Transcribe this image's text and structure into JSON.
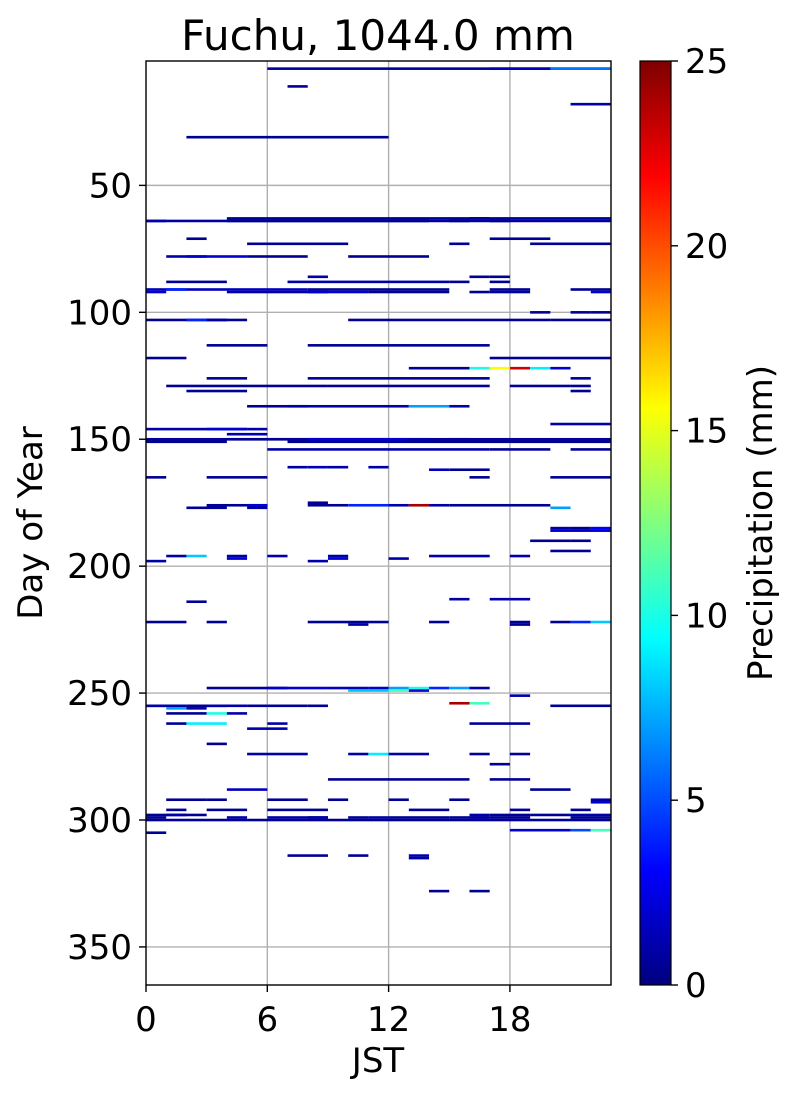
{
  "chart_data": {
    "type": "heatmap",
    "title": "Fuchu, 1044.0 mm",
    "xlabel": "JST",
    "ylabel": "Day of Year",
    "xlim": [
      0,
      23
    ],
    "ylim": [
      365,
      1
    ],
    "y_inverted": true,
    "xticks": [
      0,
      6,
      12,
      18
    ],
    "yticks": [
      50,
      100,
      150,
      200,
      250,
      300,
      350
    ],
    "grid": true,
    "colormap": "jet",
    "colorbar": {
      "label": "Precipitation (mm)",
      "range": [
        0,
        25
      ],
      "ticks": [
        0,
        5,
        10,
        15,
        20,
        25
      ],
      "gradient_stops": [
        "#00007f",
        "#0000ff",
        "#007fff",
        "#00ffff",
        "#7fff7f",
        "#ffff00",
        "#ff7f00",
        "#ff0000",
        "#7f0000"
      ]
    },
    "cell_encoding": "each row is [day_of_year, hour_start, hour_end, precipitation_mm]",
    "cells": [
      [
        4,
        6,
        23,
        0.5
      ],
      [
        4,
        17,
        20,
        1.5
      ],
      [
        4,
        20,
        23,
        6
      ],
      [
        11,
        7,
        8,
        0.5
      ],
      [
        18,
        21,
        23,
        1
      ],
      [
        31,
        2,
        12,
        0.5
      ],
      [
        63,
        4,
        23,
        0.5
      ],
      [
        63,
        16,
        17,
        0.5
      ],
      [
        64,
        0,
        23,
        1
      ],
      [
        64,
        0,
        1,
        1
      ],
      [
        64,
        4,
        10,
        0.5
      ],
      [
        64,
        10,
        14,
        0.5
      ],
      [
        64,
        15,
        16,
        0.5
      ],
      [
        64,
        17,
        18,
        0.5
      ],
      [
        71,
        2,
        3,
        0.5
      ],
      [
        71,
        17,
        20,
        0.5
      ],
      [
        73,
        5,
        10,
        0.5
      ],
      [
        73,
        15,
        16,
        0.5
      ],
      [
        73,
        19,
        23,
        0.5
      ],
      [
        78,
        1,
        3,
        1
      ],
      [
        78,
        2,
        5,
        2
      ],
      [
        78,
        5,
        7,
        0.5
      ],
      [
        78,
        7,
        8,
        0.5
      ],
      [
        78,
        10,
        14,
        0.5
      ],
      [
        86,
        8,
        9,
        1
      ],
      [
        86,
        16,
        17,
        0.5
      ],
      [
        86,
        17,
        18,
        0.5
      ],
      [
        88,
        1,
        4,
        0.5
      ],
      [
        88,
        7,
        15,
        1
      ],
      [
        88,
        15,
        16,
        0.5
      ],
      [
        88,
        17,
        18,
        0.5
      ],
      [
        91,
        0,
        8,
        1.5
      ],
      [
        91,
        1,
        2,
        4
      ],
      [
        91,
        8,
        15,
        0.5
      ],
      [
        91,
        17,
        19,
        0.5
      ],
      [
        91,
        21,
        23,
        0.5
      ],
      [
        92,
        0,
        1,
        2
      ],
      [
        92,
        4,
        9,
        1
      ],
      [
        92,
        8,
        11,
        2
      ],
      [
        92,
        11,
        15,
        0.5
      ],
      [
        92,
        16,
        17,
        0.5
      ],
      [
        92,
        17,
        19,
        1
      ],
      [
        92,
        22,
        23,
        2
      ],
      [
        100,
        19,
        20,
        0.5
      ],
      [
        100,
        21,
        22,
        0.5
      ],
      [
        100,
        22,
        23,
        0.5
      ],
      [
        103,
        0,
        4,
        0.5
      ],
      [
        103,
        2,
        4,
        4
      ],
      [
        103,
        3,
        5,
        0.5
      ],
      [
        103,
        10,
        16,
        0.5
      ],
      [
        103,
        16,
        20,
        0.5
      ],
      [
        103,
        20,
        23,
        0.5
      ],
      [
        113,
        3,
        6,
        0.5
      ],
      [
        113,
        8,
        17,
        0.5
      ],
      [
        118,
        0,
        2,
        0.5
      ],
      [
        118,
        17,
        23,
        0.5
      ],
      [
        122,
        13,
        16,
        0.5
      ],
      [
        122,
        16,
        17,
        10
      ],
      [
        122,
        17,
        18,
        15.5
      ],
      [
        122,
        18,
        19,
        23
      ],
      [
        122,
        19,
        20,
        9
      ],
      [
        122,
        20,
        21,
        2
      ],
      [
        126,
        3,
        5,
        0.5
      ],
      [
        126,
        8,
        17,
        0.5
      ],
      [
        126,
        21,
        22,
        0.5
      ],
      [
        129,
        1,
        9,
        0.5
      ],
      [
        129,
        9,
        17,
        0.5
      ],
      [
        129,
        18,
        21,
        0.5
      ],
      [
        129,
        21,
        22,
        0.5
      ],
      [
        131,
        2,
        5,
        0.5
      ],
      [
        131,
        21,
        22,
        0.5
      ],
      [
        137,
        5,
        8,
        0.5
      ],
      [
        137,
        7,
        13,
        1
      ],
      [
        137,
        13,
        15,
        7
      ],
      [
        137,
        15,
        16,
        1
      ],
      [
        144,
        20,
        23,
        1
      ],
      [
        146,
        0,
        5,
        1
      ],
      [
        146,
        3,
        5,
        2
      ],
      [
        146,
        5,
        6,
        1
      ],
      [
        148,
        4,
        6,
        1
      ],
      [
        150,
        0,
        12,
        0.5
      ],
      [
        150,
        4,
        23,
        0.5
      ],
      [
        150,
        8,
        13,
        2
      ],
      [
        150,
        13,
        14,
        1
      ],
      [
        150,
        15,
        16,
        0.5
      ],
      [
        151,
        0,
        4,
        0.5
      ],
      [
        151,
        7,
        23,
        0.5
      ],
      [
        154,
        6,
        16,
        1
      ],
      [
        154,
        16,
        17,
        1
      ],
      [
        154,
        17,
        20,
        0.5
      ],
      [
        154,
        21,
        23,
        0.5
      ],
      [
        161,
        7,
        8,
        1
      ],
      [
        161,
        8,
        9,
        1.5
      ],
      [
        161,
        9,
        10,
        1
      ],
      [
        161,
        11,
        12,
        1
      ],
      [
        162,
        14,
        15,
        1.5
      ],
      [
        162,
        15,
        17,
        0.5
      ],
      [
        165,
        0,
        1,
        0.5
      ],
      [
        165,
        3,
        6,
        0.5
      ],
      [
        165,
        16,
        17,
        0.5
      ],
      [
        165,
        20,
        23,
        0.5
      ],
      [
        175,
        8,
        9,
        0.5
      ],
      [
        176,
        3,
        6,
        0.5
      ],
      [
        176,
        5,
        6,
        2
      ],
      [
        176,
        8,
        10,
        0.5
      ],
      [
        176,
        10,
        12,
        4
      ],
      [
        176,
        12,
        13,
        1
      ],
      [
        176,
        13,
        14,
        24
      ],
      [
        176,
        14,
        15,
        1
      ],
      [
        176,
        15,
        16,
        0.5
      ],
      [
        176,
        16,
        18,
        0.5
      ],
      [
        176,
        18,
        20,
        0.5
      ],
      [
        177,
        2,
        4,
        0.5
      ],
      [
        177,
        5,
        6,
        1
      ],
      [
        177,
        20,
        21,
        7
      ],
      [
        185,
        20,
        21,
        1
      ],
      [
        185,
        21,
        22,
        0.5
      ],
      [
        185,
        22,
        23,
        3
      ],
      [
        186,
        20,
        23,
        2
      ],
      [
        190,
        19,
        21,
        0.5
      ],
      [
        190,
        21,
        22,
        0.5
      ],
      [
        194,
        20,
        22,
        0.5
      ],
      [
        196,
        1,
        2,
        1
      ],
      [
        196,
        2,
        3,
        8
      ],
      [
        196,
        4,
        5,
        1
      ],
      [
        196,
        6,
        7,
        1
      ],
      [
        196,
        9,
        10,
        1
      ],
      [
        196,
        14,
        17,
        1
      ],
      [
        196,
        18,
        19,
        1
      ],
      [
        197,
        4,
        5,
        2
      ],
      [
        197,
        9,
        10,
        2
      ],
      [
        197,
        12,
        13,
        1
      ],
      [
        198,
        0,
        1,
        1
      ],
      [
        198,
        8,
        9,
        1
      ],
      [
        213,
        15,
        16,
        1
      ],
      [
        213,
        17,
        18,
        1
      ],
      [
        213,
        18,
        19,
        1
      ],
      [
        214,
        2,
        3,
        0.5
      ],
      [
        222,
        0,
        2,
        0.5
      ],
      [
        222,
        3,
        4,
        0.5
      ],
      [
        222,
        8,
        12,
        0.5
      ],
      [
        222,
        14,
        15,
        0.5
      ],
      [
        222,
        18,
        19,
        0.5
      ],
      [
        222,
        20,
        21,
        0.5
      ],
      [
        222,
        21,
        22,
        4
      ],
      [
        222,
        22,
        23,
        8
      ],
      [
        223,
        10,
        11,
        1
      ],
      [
        223,
        18,
        19,
        0.5
      ],
      [
        248,
        3,
        7,
        0.5
      ],
      [
        248,
        6,
        9,
        2
      ],
      [
        248,
        9,
        11,
        1.5
      ],
      [
        248,
        11,
        12,
        2
      ],
      [
        248,
        12,
        13,
        7
      ],
      [
        248,
        13,
        14,
        10
      ],
      [
        248,
        14,
        15,
        4
      ],
      [
        248,
        15,
        16,
        7
      ],
      [
        248,
        16,
        17,
        1
      ],
      [
        249,
        10,
        12,
        8
      ],
      [
        249,
        12,
        13,
        11
      ],
      [
        249,
        13,
        14,
        2
      ],
      [
        251,
        18,
        19,
        1
      ],
      [
        254,
        15,
        16,
        24
      ],
      [
        254,
        16,
        17,
        11
      ],
      [
        255,
        0,
        1,
        3
      ],
      [
        255,
        0,
        2,
        1
      ],
      [
        255,
        2,
        4,
        0.5
      ],
      [
        255,
        3,
        5,
        1
      ],
      [
        255,
        5,
        6,
        0.5
      ],
      [
        255,
        6,
        8,
        0.5
      ],
      [
        255,
        8,
        9,
        0.5
      ],
      [
        255,
        20,
        23,
        0.5
      ],
      [
        256,
        1,
        2,
        7
      ],
      [
        256,
        2,
        3,
        1
      ],
      [
        258,
        1,
        3,
        0.5
      ],
      [
        258,
        3,
        4,
        10
      ],
      [
        258,
        4,
        5,
        1
      ],
      [
        262,
        1,
        2,
        0.5
      ],
      [
        262,
        2,
        4,
        9
      ],
      [
        262,
        6,
        7,
        1
      ],
      [
        262,
        16,
        19,
        0.5
      ],
      [
        264,
        5,
        7,
        1
      ],
      [
        270,
        3,
        4,
        0.5
      ],
      [
        274,
        5,
        8,
        1
      ],
      [
        274,
        10,
        11,
        1
      ],
      [
        274,
        11,
        12,
        9
      ],
      [
        274,
        12,
        14,
        1
      ],
      [
        274,
        16,
        17,
        0.5
      ],
      [
        274,
        18,
        19,
        0.5
      ],
      [
        278,
        17,
        18,
        0.5
      ],
      [
        284,
        9,
        16,
        0.5
      ],
      [
        284,
        17,
        19,
        0.5
      ],
      [
        288,
        4,
        6,
        1.5
      ],
      [
        288,
        19,
        21,
        0.5
      ],
      [
        292,
        1,
        3,
        0.5
      ],
      [
        292,
        3,
        4,
        0.5
      ],
      [
        292,
        6,
        7,
        0.5
      ],
      [
        292,
        7,
        8,
        0.5
      ],
      [
        292,
        9,
        10,
        0.5
      ],
      [
        292,
        12,
        13,
        0.5
      ],
      [
        292,
        15,
        16,
        0.5
      ],
      [
        292,
        22,
        23,
        1
      ],
      [
        293,
        22,
        23,
        2
      ],
      [
        296,
        1,
        2,
        0.5
      ],
      [
        296,
        3,
        5,
        0.5
      ],
      [
        296,
        6,
        9,
        0.5
      ],
      [
        296,
        13,
        15,
        0.5
      ],
      [
        296,
        18,
        19,
        0.5
      ],
      [
        296,
        21,
        22,
        0.5
      ],
      [
        298,
        0,
        3,
        0.5
      ],
      [
        298,
        1,
        2,
        1
      ],
      [
        298,
        16,
        17,
        1
      ],
      [
        298,
        17,
        19,
        0.5
      ],
      [
        298,
        19,
        21,
        0.5
      ],
      [
        298,
        21,
        23,
        1
      ],
      [
        299,
        0,
        1,
        0.5
      ],
      [
        299,
        4,
        5,
        1
      ],
      [
        299,
        6,
        9,
        1
      ],
      [
        299,
        8,
        9,
        1
      ],
      [
        299,
        10,
        11,
        0.5
      ],
      [
        299,
        11,
        12,
        1
      ],
      [
        299,
        12,
        15,
        0.5
      ],
      [
        299,
        15,
        17,
        0.5
      ],
      [
        299,
        16,
        17,
        1
      ],
      [
        299,
        17,
        19,
        0.5
      ],
      [
        299,
        21,
        23,
        0.5
      ],
      [
        300,
        0,
        5,
        0.5
      ],
      [
        300,
        5,
        23,
        0.5
      ],
      [
        304,
        18,
        21,
        2
      ],
      [
        304,
        21,
        22,
        5
      ],
      [
        304,
        22,
        23,
        11
      ],
      [
        305,
        0,
        1,
        0.5
      ],
      [
        314,
        7,
        9,
        0.5
      ],
      [
        314,
        10,
        11,
        0.5
      ],
      [
        314,
        13,
        14,
        1
      ],
      [
        315,
        13,
        14,
        1
      ],
      [
        328,
        14,
        15,
        0.5
      ],
      [
        328,
        16,
        17,
        0.5
      ]
    ]
  }
}
